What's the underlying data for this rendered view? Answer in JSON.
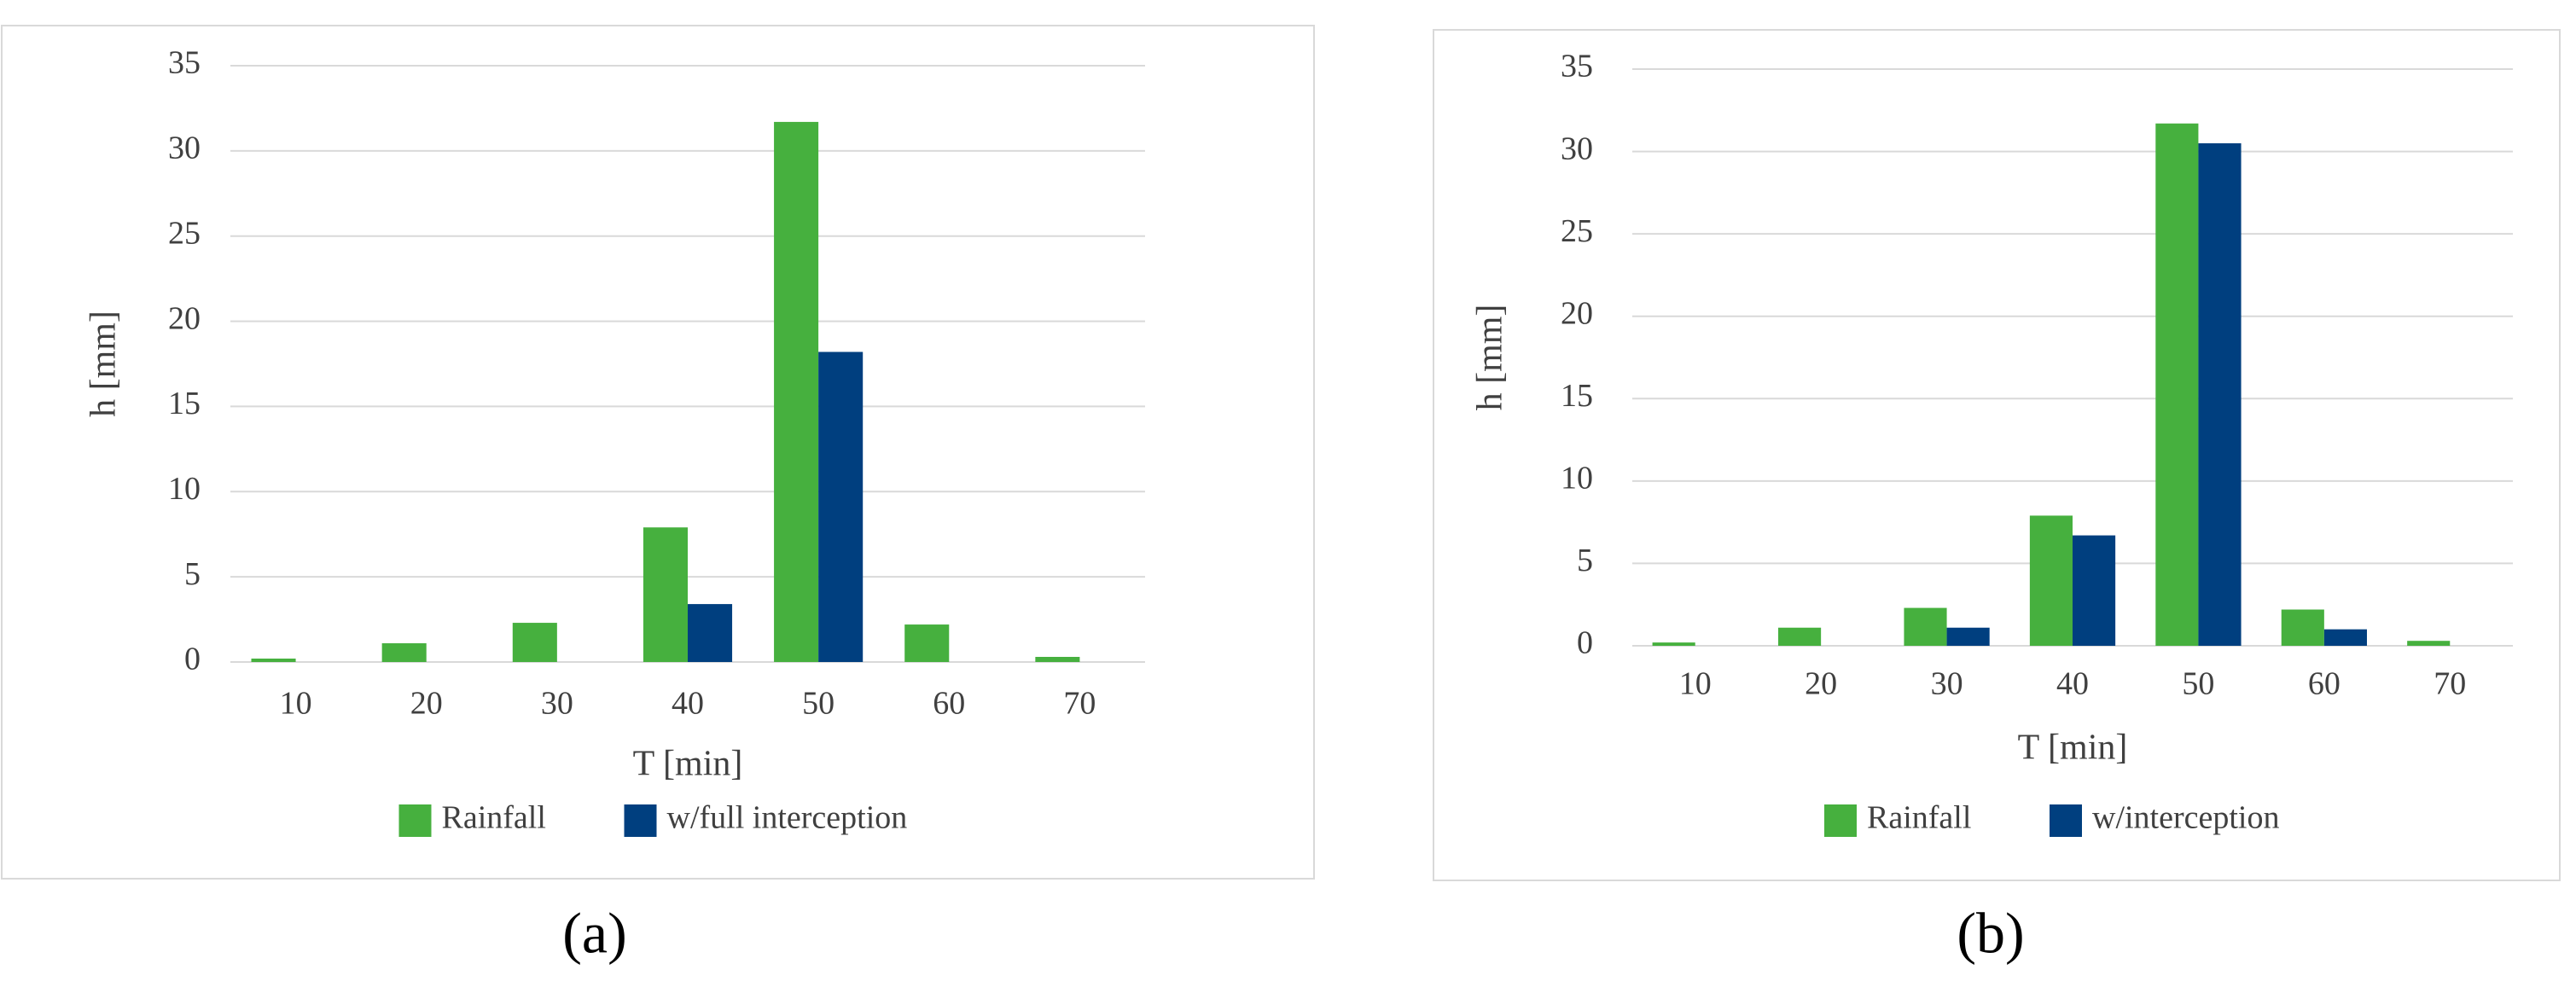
{
  "chart_data": [
    {
      "type": "bar",
      "label": "(a)",
      "x_label": "T [min]",
      "y_label": "h [mm]",
      "categories": [
        10,
        20,
        30,
        40,
        50,
        60,
        70
      ],
      "series": [
        {
          "name": "Rainfall",
          "color": "#46b03e",
          "values": [
            0.2,
            1.1,
            2.3,
            7.9,
            31.7,
            2.2,
            0.3
          ]
        },
        {
          "name": "w/full interception",
          "color": "#003f7f",
          "values": [
            0,
            0,
            0,
            3.4,
            18.2,
            0,
            0
          ]
        }
      ],
      "ylim": [
        0,
        35
      ],
      "yticks": [
        0,
        5,
        10,
        15,
        20,
        25,
        30,
        35
      ],
      "grid": true
    },
    {
      "type": "bar",
      "label": "(b)",
      "x_label": "T [min]",
      "y_label": "h [mm]",
      "categories": [
        10,
        20,
        30,
        40,
        50,
        60,
        70
      ],
      "series": [
        {
          "name": "Rainfall",
          "color": "#46b03e",
          "values": [
            0.2,
            1.1,
            2.3,
            7.9,
            31.7,
            2.2,
            0.3
          ]
        },
        {
          "name": "w/interception",
          "color": "#003f7f",
          "values": [
            0,
            0,
            1.1,
            6.7,
            30.5,
            1.0,
            0
          ]
        }
      ],
      "ylim": [
        0,
        35
      ],
      "yticks": [
        0,
        5,
        10,
        15,
        20,
        25,
        30,
        35
      ],
      "grid": true
    }
  ]
}
